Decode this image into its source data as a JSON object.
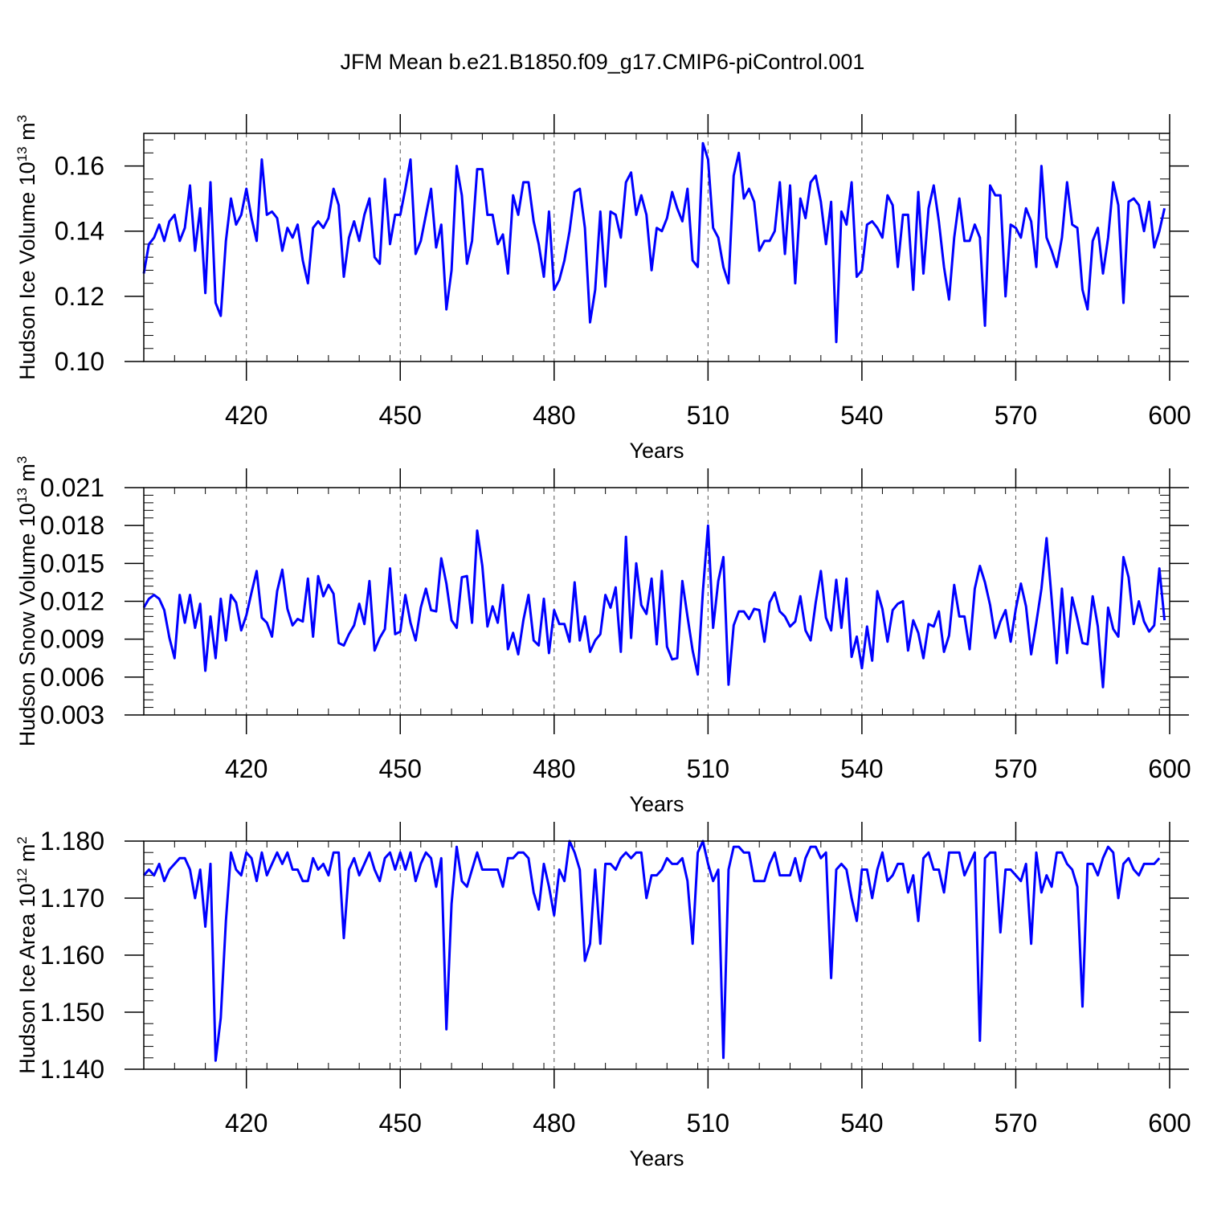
{
  "title": "JFM Mean b.e21.B1850.f09_g17.CMIP6-piControl.001",
  "line_color": "#0000ff",
  "grid_color": "#555555",
  "chart_data": [
    {
      "type": "line",
      "ylabel": "Hudson Ice Volume 10",
      "ylabel_exp": "13",
      "ylabel_unit": " m",
      "ylabel_unit_exp": "3",
      "xlabel": "Years",
      "xlim": [
        400,
        600
      ],
      "ylim": [
        0.1,
        0.17
      ],
      "yticks": [
        0.1,
        0.12,
        0.14,
        0.16
      ],
      "ytick_labels": [
        "0.10",
        "0.12",
        "0.14",
        "0.16"
      ],
      "xticks": [
        420,
        450,
        480,
        510,
        540,
        570,
        600
      ],
      "grid": "vertical dashed at major x ticks",
      "x_start": 400,
      "series": [
        {
          "values": [
            0.127,
            0.136,
            0.138,
            0.142,
            0.137,
            0.143,
            0.145,
            0.137,
            0.141,
            0.154,
            0.134,
            0.147,
            0.121,
            0.155,
            0.118,
            0.114,
            0.137,
            0.15,
            0.142,
            0.145,
            0.153,
            0.144,
            0.137,
            0.162,
            0.145,
            0.146,
            0.144,
            0.134,
            0.141,
            0.138,
            0.142,
            0.131,
            0.124,
            0.141,
            0.143,
            0.141,
            0.144,
            0.153,
            0.148,
            0.126,
            0.138,
            0.143,
            0.137,
            0.145,
            0.15,
            0.132,
            0.13,
            0.156,
            0.136,
            0.145,
            0.145,
            0.153,
            0.162,
            0.133,
            0.137,
            0.145,
            0.153,
            0.135,
            0.142,
            0.116,
            0.128,
            0.16,
            0.151,
            0.13,
            0.137,
            0.159,
            0.159,
            0.145,
            0.145,
            0.136,
            0.139,
            0.127,
            0.151,
            0.145,
            0.155,
            0.155,
            0.143,
            0.136,
            0.126,
            0.146,
            0.122,
            0.125,
            0.131,
            0.14,
            0.152,
            0.153,
            0.141,
            0.112,
            0.122,
            0.146,
            0.123,
            0.146,
            0.145,
            0.138,
            0.155,
            0.158,
            0.145,
            0.151,
            0.145,
            0.128,
            0.141,
            0.14,
            0.144,
            0.152,
            0.147,
            0.143,
            0.153,
            0.131,
            0.129,
            0.167,
            0.162,
            0.141,
            0.138,
            0.129,
            0.124,
            0.157,
            0.164,
            0.15,
            0.153,
            0.149,
            0.134,
            0.137,
            0.137,
            0.14,
            0.155,
            0.133,
            0.154,
            0.124,
            0.15,
            0.144,
            0.155,
            0.157,
            0.149,
            0.136,
            0.149,
            0.106,
            0.146,
            0.142,
            0.155,
            0.126,
            0.128,
            0.142,
            0.143,
            0.141,
            0.138,
            0.151,
            0.148,
            0.129,
            0.145,
            0.145,
            0.122,
            0.152,
            0.127,
            0.147,
            0.154,
            0.143,
            0.129,
            0.119,
            0.138,
            0.15,
            0.137,
            0.137,
            0.142,
            0.138,
            0.111,
            0.154,
            0.151,
            0.151,
            0.12,
            0.142,
            0.141,
            0.138,
            0.147,
            0.143,
            0.129,
            0.16,
            0.138,
            0.134,
            0.129,
            0.138,
            0.155,
            0.142,
            0.141,
            0.122,
            0.116,
            0.137,
            0.141,
            0.127,
            0.138,
            0.155,
            0.148,
            0.118,
            0.149,
            0.15,
            0.148,
            0.14,
            0.149,
            0.135,
            0.14,
            0.147
          ]
        }
      ]
    },
    {
      "type": "line",
      "ylabel": "Hudson Snow Volume 10",
      "ylabel_exp": "13",
      "ylabel_unit": " m",
      "ylabel_unit_exp": "3",
      "xlabel": "Years",
      "xlim": [
        400,
        600
      ],
      "ylim": [
        0.003,
        0.021
      ],
      "yticks": [
        0.003,
        0.006,
        0.009,
        0.012,
        0.015,
        0.018,
        0.021
      ],
      "ytick_labels": [
        "0.003",
        "0.006",
        "0.009",
        "0.012",
        "0.015",
        "0.018",
        "0.021"
      ],
      "xticks": [
        420,
        450,
        480,
        510,
        540,
        570,
        600
      ],
      "grid": "vertical dashed at major x ticks",
      "x_start": 400,
      "series": [
        {
          "values": [
            0.0115,
            0.0122,
            0.0125,
            0.0122,
            0.0113,
            0.0091,
            0.0075,
            0.0125,
            0.0103,
            0.0125,
            0.0099,
            0.0118,
            0.0065,
            0.0108,
            0.0075,
            0.0122,
            0.0089,
            0.0125,
            0.0119,
            0.0097,
            0.0109,
            0.0127,
            0.0144,
            0.0107,
            0.0103,
            0.0092,
            0.0128,
            0.0145,
            0.0114,
            0.0101,
            0.0106,
            0.0104,
            0.0138,
            0.0092,
            0.014,
            0.0124,
            0.0133,
            0.0126,
            0.0087,
            0.0085,
            0.0094,
            0.0101,
            0.0118,
            0.0102,
            0.0136,
            0.0081,
            0.0091,
            0.0098,
            0.0146,
            0.0094,
            0.0096,
            0.0125,
            0.0103,
            0.0089,
            0.0115,
            0.013,
            0.0113,
            0.0112,
            0.0154,
            0.0134,
            0.0105,
            0.0099,
            0.0139,
            0.014,
            0.0103,
            0.0176,
            0.0148,
            0.01,
            0.0116,
            0.0103,
            0.0133,
            0.0082,
            0.0095,
            0.0078,
            0.0105,
            0.0125,
            0.0089,
            0.0085,
            0.0122,
            0.0079,
            0.0113,
            0.0102,
            0.0102,
            0.0088,
            0.0135,
            0.0089,
            0.0108,
            0.008,
            0.0089,
            0.0094,
            0.0125,
            0.0115,
            0.0131,
            0.008,
            0.0171,
            0.0091,
            0.015,
            0.0117,
            0.011,
            0.0138,
            0.0086,
            0.0144,
            0.0084,
            0.0074,
            0.0075,
            0.0136,
            0.0108,
            0.0081,
            0.0062,
            0.0128,
            0.018,
            0.0099,
            0.0136,
            0.0155,
            0.0054,
            0.0101,
            0.0112,
            0.0112,
            0.0106,
            0.0114,
            0.0113,
            0.0088,
            0.0119,
            0.0127,
            0.0112,
            0.0108,
            0.01,
            0.0104,
            0.0124,
            0.0097,
            0.0089,
            0.0119,
            0.0144,
            0.0107,
            0.0097,
            0.0137,
            0.0099,
            0.0138,
            0.0076,
            0.0092,
            0.0067,
            0.01,
            0.0073,
            0.0128,
            0.0114,
            0.0088,
            0.0113,
            0.0118,
            0.012,
            0.0081,
            0.0105,
            0.0095,
            0.0075,
            0.0102,
            0.01,
            0.0112,
            0.008,
            0.0093,
            0.0133,
            0.0108,
            0.0108,
            0.0082,
            0.013,
            0.0148,
            0.0135,
            0.0117,
            0.0091,
            0.0104,
            0.0113,
            0.0088,
            0.0114,
            0.0134,
            0.0116,
            0.0078,
            0.0103,
            0.013,
            0.017,
            0.0122,
            0.0071,
            0.013,
            0.0079,
            0.0123,
            0.0106,
            0.0087,
            0.0086,
            0.0124,
            0.01,
            0.0052,
            0.0115,
            0.0098,
            0.0092,
            0.0155,
            0.0139,
            0.0102,
            0.012,
            0.0104,
            0.0096,
            0.0101,
            0.0146,
            0.0105
          ]
        }
      ]
    },
    {
      "type": "line",
      "ylabel": "Hudson Ice Area 10",
      "ylabel_exp": "12",
      "ylabel_unit": " m",
      "ylabel_unit_exp": "2",
      "xlabel": "Years",
      "xlim": [
        400,
        600
      ],
      "ylim": [
        1.14,
        1.18
      ],
      "yticks": [
        1.14,
        1.15,
        1.16,
        1.17,
        1.18
      ],
      "ytick_labels": [
        "1.140",
        "1.150",
        "1.160",
        "1.170",
        "1.180"
      ],
      "xticks": [
        420,
        450,
        480,
        510,
        540,
        570,
        600
      ],
      "grid": "vertical dashed at major x ticks",
      "x_start": 400,
      "series": [
        {
          "values": [
            1.174,
            1.175,
            1.174,
            1.176,
            1.173,
            1.175,
            1.176,
            1.177,
            1.177,
            1.175,
            1.17,
            1.175,
            1.165,
            1.176,
            1.1415,
            1.149,
            1.166,
            1.178,
            1.175,
            1.174,
            1.178,
            1.177,
            1.173,
            1.178,
            1.174,
            1.176,
            1.178,
            1.176,
            1.178,
            1.175,
            1.175,
            1.173,
            1.173,
            1.177,
            1.175,
            1.176,
            1.174,
            1.178,
            1.178,
            1.163,
            1.175,
            1.177,
            1.174,
            1.176,
            1.178,
            1.175,
            1.173,
            1.177,
            1.178,
            1.175,
            1.178,
            1.175,
            1.178,
            1.173,
            1.176,
            1.178,
            1.177,
            1.172,
            1.177,
            1.147,
            1.169,
            1.179,
            1.173,
            1.172,
            1.175,
            1.178,
            1.175,
            1.175,
            1.175,
            1.175,
            1.172,
            1.177,
            1.177,
            1.178,
            1.178,
            1.177,
            1.171,
            1.168,
            1.176,
            1.172,
            1.167,
            1.175,
            1.173,
            1.18,
            1.178,
            1.175,
            1.159,
            1.162,
            1.175,
            1.162,
            1.176,
            1.176,
            1.175,
            1.177,
            1.178,
            1.177,
            1.178,
            1.178,
            1.17,
            1.174,
            1.174,
            1.175,
            1.177,
            1.176,
            1.176,
            1.177,
            1.173,
            1.162,
            1.178,
            1.18,
            1.176,
            1.173,
            1.175,
            1.142,
            1.175,
            1.179,
            1.179,
            1.178,
            1.178,
            1.173,
            1.173,
            1.173,
            1.176,
            1.178,
            1.174,
            1.174,
            1.174,
            1.177,
            1.173,
            1.177,
            1.179,
            1.179,
            1.177,
            1.178,
            1.156,
            1.175,
            1.176,
            1.175,
            1.17,
            1.166,
            1.175,
            1.175,
            1.17,
            1.175,
            1.178,
            1.173,
            1.174,
            1.176,
            1.176,
            1.171,
            1.174,
            1.166,
            1.177,
            1.178,
            1.175,
            1.175,
            1.171,
            1.178,
            1.178,
            1.178,
            1.174,
            1.176,
            1.178,
            1.145,
            1.177,
            1.178,
            1.178,
            1.164,
            1.175,
            1.175,
            1.174,
            1.173,
            1.176,
            1.162,
            1.178,
            1.171,
            1.174,
            1.172,
            1.178,
            1.178,
            1.176,
            1.175,
            1.172,
            1.151,
            1.176,
            1.176,
            1.174,
            1.177,
            1.179,
            1.178,
            1.17,
            1.176,
            1.177,
            1.175,
            1.174,
            1.176,
            1.176,
            1.176,
            1.177
          ]
        }
      ]
    }
  ]
}
